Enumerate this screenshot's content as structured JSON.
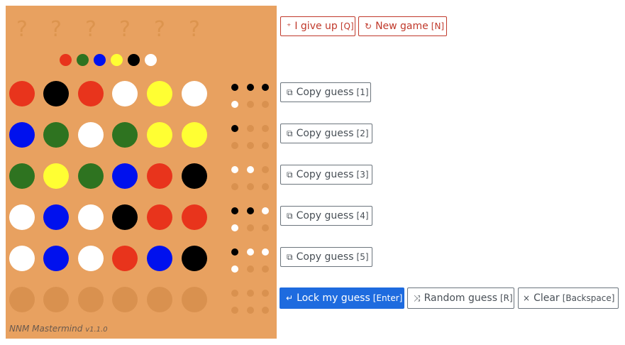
{
  "colors": {
    "red": "#e8341c",
    "black": "#000000",
    "white": "#ffffff",
    "yellow": "#ffff33",
    "blue": "#0011ee",
    "green": "#2e7320"
  },
  "secret": [
    "?",
    "?",
    "?",
    "?",
    "?",
    "?"
  ],
  "palette": [
    "red",
    "green",
    "blue",
    "yellow",
    "black",
    "white"
  ],
  "guesses": [
    {
      "pegs": [
        "red",
        "black",
        "red",
        "white",
        "yellow",
        "white"
      ],
      "keys": [
        "black",
        "black",
        "black",
        "white"
      ]
    },
    {
      "pegs": [
        "blue",
        "green",
        "white",
        "green",
        "yellow",
        "yellow"
      ],
      "keys": [
        "black"
      ]
    },
    {
      "pegs": [
        "green",
        "yellow",
        "green",
        "blue",
        "red",
        "black"
      ],
      "keys": [
        "white",
        "white"
      ]
    },
    {
      "pegs": [
        "white",
        "blue",
        "white",
        "black",
        "red",
        "red"
      ],
      "keys": [
        "black",
        "black",
        "white",
        "white"
      ]
    },
    {
      "pegs": [
        "white",
        "blue",
        "white",
        "red",
        "blue",
        "black"
      ],
      "keys": [
        "black",
        "white",
        "white",
        "white"
      ]
    },
    {
      "pegs": [],
      "keys": []
    }
  ],
  "brand": {
    "name": "NNM Mastermind",
    "version": "v1.1.0"
  },
  "buttons": {
    "give_up": {
      "icon": "⁺",
      "label": "I give up",
      "key": "[Q]"
    },
    "new_game": {
      "icon": "↻",
      "label": "New game",
      "key": "[N]"
    },
    "copy": [
      {
        "icon": "⧉",
        "label": "Copy guess",
        "key": "[1]"
      },
      {
        "icon": "⧉",
        "label": "Copy guess",
        "key": "[2]"
      },
      {
        "icon": "⧉",
        "label": "Copy guess",
        "key": "[3]"
      },
      {
        "icon": "⧉",
        "label": "Copy guess",
        "key": "[4]"
      },
      {
        "icon": "⧉",
        "label": "Copy guess",
        "key": "[5]"
      }
    ],
    "lock": {
      "icon": "↵",
      "label": "Lock my guess",
      "key": "[Enter]"
    },
    "random": {
      "icon": "⤨",
      "label": "Random guess",
      "key": "[R]"
    },
    "clear": {
      "icon": "×",
      "label": "Clear",
      "key": "[Backspace]"
    }
  }
}
